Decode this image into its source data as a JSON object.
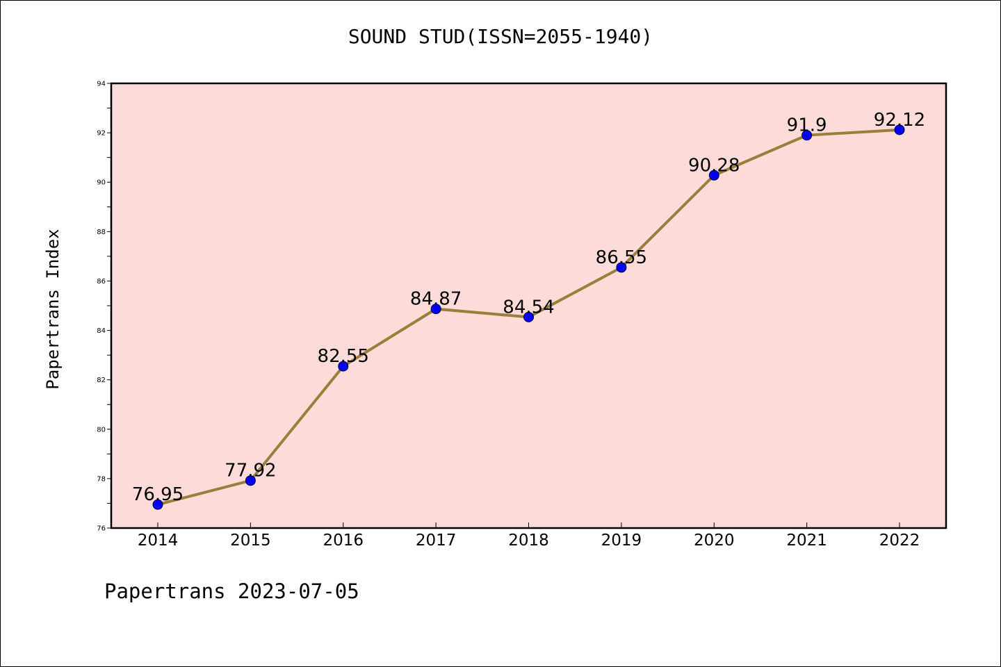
{
  "title": "SOUND STUD(ISSN=2055-1940)",
  "footer": "Papertrans 2023-07-05",
  "chart_data": {
    "type": "line",
    "title": "SOUND STUD(ISSN=2055-1940)",
    "xlabel": "",
    "ylabel": "Papertrans Index",
    "categories": [
      "2014",
      "2015",
      "2016",
      "2017",
      "2018",
      "2019",
      "2020",
      "2021",
      "2022"
    ],
    "series": [
      {
        "values": [
          76.95,
          77.92,
          82.55,
          84.87,
          84.54,
          86.55,
          90.28,
          91.9,
          92.12
        ],
        "labels": [
          "76.95",
          "77.92",
          "82.55",
          "84.87",
          "84.54",
          "86.55",
          "90.28",
          "91.9",
          "92.12"
        ]
      }
    ],
    "ylim": [
      76,
      94
    ],
    "yticks": [
      "76",
      "78",
      "80",
      "82",
      "84",
      "86",
      "88",
      "90",
      "92",
      "94"
    ],
    "grid": false,
    "legend": "none",
    "colors": {
      "plot_background": "#fddbd9",
      "line": "#9a7f3a",
      "marker": "#0000ff",
      "axes": "#000000"
    }
  }
}
